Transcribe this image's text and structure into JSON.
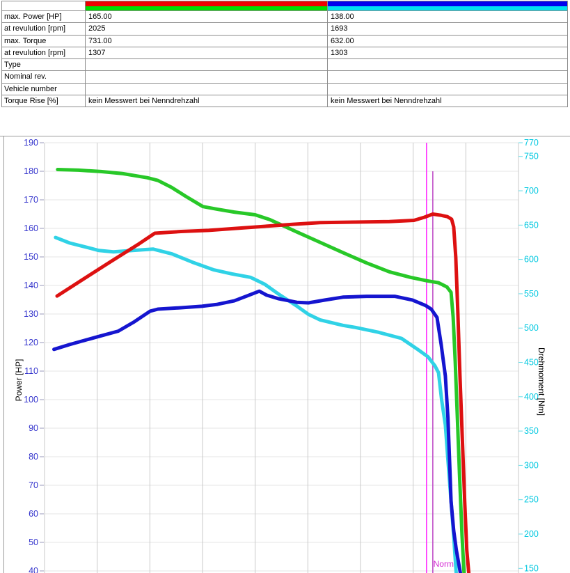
{
  "table": {
    "header_colors": {
      "run1_power": "#ee0000",
      "run1_torque": "#00dd00",
      "run2_power": "#0000ee",
      "run2_torque": "#00e0f0"
    },
    "rows": [
      {
        "label": "max. Power [HP]",
        "run1": "165.00",
        "run2": "138.00"
      },
      {
        "label": "at revulution [rpm]",
        "run1": "2025",
        "run2": "1693"
      },
      {
        "label": "max. Torque",
        "run1": "731.00",
        "run2": "632.00"
      },
      {
        "label": "at revulution [rpm]",
        "run1": "1307",
        "run2": "1303"
      },
      {
        "label": "Type",
        "run1": "",
        "run2": ""
      },
      {
        "label": "Nominal rev.",
        "run1": "",
        "run2": ""
      },
      {
        "label": "Vehicle number",
        "run1": "",
        "run2": ""
      },
      {
        "label": "Torque Rise [%]",
        "run1": "kein Messwert bei Nenndrehzahl",
        "run2": "kein Messwert bei Nenndrehzahl"
      }
    ]
  },
  "chart_data": {
    "type": "line",
    "title": "",
    "x_axis": {
      "unit": "rpm",
      "labels_visible": false,
      "visible_range_rpm": [
        1282,
        2189
      ]
    },
    "left_axis": {
      "label": "Power [HP]",
      "color": "#3333cc",
      "ticks": [
        190,
        180,
        170,
        160,
        150,
        140,
        130,
        120,
        110,
        100,
        90,
        80,
        70,
        60,
        50,
        40
      ],
      "range": [
        40,
        190
      ]
    },
    "right_axis": {
      "label": "Drehmoment [Nm]",
      "color": "#00c8e0",
      "ticks": [
        770,
        750,
        700,
        650,
        600,
        550,
        500,
        450,
        400,
        350,
        300,
        250,
        200,
        150
      ],
      "range": [
        150,
        770
      ]
    },
    "grid": {
      "vertical_lines": 10,
      "vertical_color": "#c9c9c9",
      "horizontal_color": "#e4e4e4"
    },
    "markers": {
      "lines": [
        {
          "rpm": 2013,
          "color": "#ff30ff",
          "from_hp": null
        },
        {
          "rpm": 2025,
          "color": "#c050c8",
          "from_hp": 180
        }
      ],
      "label": {
        "text": "Normin",
        "color": "#d428d4",
        "rpm": 2034,
        "hp": 41.5
      }
    },
    "series": [
      {
        "name": "torque-run-1",
        "axis": "nm",
        "color": "#28c828",
        "points": [
          [
            1307,
            731
          ],
          [
            1347,
            730
          ],
          [
            1390,
            728
          ],
          [
            1432,
            725
          ],
          [
            1479,
            719
          ],
          [
            1499,
            715
          ],
          [
            1525,
            705
          ],
          [
            1552,
            692
          ],
          [
            1585,
            677
          ],
          [
            1613,
            673
          ],
          [
            1645,
            669
          ],
          [
            1685,
            665
          ],
          [
            1713,
            658
          ],
          [
            1765,
            640
          ],
          [
            1809,
            625
          ],
          [
            1853,
            610
          ],
          [
            1898,
            595
          ],
          [
            1942,
            582
          ],
          [
            1982,
            574
          ],
          [
            2013,
            569
          ],
          [
            2036,
            566
          ],
          [
            2052,
            560
          ],
          [
            2060,
            552
          ],
          [
            2064,
            516
          ],
          [
            2068,
            451
          ],
          [
            2072,
            369
          ],
          [
            2076,
            288
          ],
          [
            2081,
            197
          ],
          [
            2085,
            140
          ]
        ]
      },
      {
        "name": "torque-run-2",
        "axis": "nm",
        "color": "#30d2e6",
        "points": [
          [
            1303,
            632
          ],
          [
            1330,
            624
          ],
          [
            1356,
            619
          ],
          [
            1386,
            613
          ],
          [
            1414,
            611
          ],
          [
            1450,
            613
          ],
          [
            1490,
            615
          ],
          [
            1526,
            608
          ],
          [
            1565,
            596
          ],
          [
            1605,
            585
          ],
          [
            1640,
            579
          ],
          [
            1676,
            574
          ],
          [
            1703,
            564
          ],
          [
            1729,
            550
          ],
          [
            1765,
            532
          ],
          [
            1787,
            520
          ],
          [
            1809,
            512
          ],
          [
            1853,
            504
          ],
          [
            1876,
            501
          ],
          [
            1920,
            494
          ],
          [
            1965,
            485
          ],
          [
            1996,
            469
          ],
          [
            2016,
            458
          ],
          [
            2029,
            445
          ],
          [
            2036,
            435
          ],
          [
            2042,
            395
          ],
          [
            2049,
            359
          ],
          [
            2054,
            308
          ],
          [
            2060,
            248
          ],
          [
            2065,
            197
          ],
          [
            2070,
            140
          ]
        ]
      },
      {
        "name": "power-run-1",
        "axis": "hp",
        "color": "#dd1111",
        "points": [
          [
            1306,
            136.3
          ],
          [
            1356,
            142.2
          ],
          [
            1410,
            148.5
          ],
          [
            1463,
            154.6
          ],
          [
            1493,
            158.3
          ],
          [
            1543,
            158.9
          ],
          [
            1596,
            159.3
          ],
          [
            1649,
            160.0
          ],
          [
            1703,
            160.7
          ],
          [
            1756,
            161.4
          ],
          [
            1809,
            162.0
          ],
          [
            1876,
            162.2
          ],
          [
            1942,
            162.4
          ],
          [
            1989,
            162.8
          ],
          [
            2009,
            163.9
          ],
          [
            2025,
            165.0
          ],
          [
            2040,
            164.6
          ],
          [
            2053,
            164.1
          ],
          [
            2061,
            163.2
          ],
          [
            2065,
            160.5
          ],
          [
            2069,
            149.8
          ],
          [
            2073,
            130.2
          ],
          [
            2077,
            108.3
          ],
          [
            2081,
            88.8
          ],
          [
            2086,
            64.4
          ],
          [
            2090,
            47.3
          ],
          [
            2094,
            39.0
          ]
        ]
      },
      {
        "name": "power-run-2",
        "axis": "hp",
        "color": "#1515cf",
        "points": [
          [
            1300,
            117.6
          ],
          [
            1330,
            119.3
          ],
          [
            1383,
            122.0
          ],
          [
            1423,
            124.0
          ],
          [
            1454,
            127.3
          ],
          [
            1484,
            131.0
          ],
          [
            1499,
            131.7
          ],
          [
            1543,
            132.2
          ],
          [
            1583,
            132.7
          ],
          [
            1613,
            133.4
          ],
          [
            1645,
            134.6
          ],
          [
            1669,
            136.3
          ],
          [
            1693,
            138.0
          ],
          [
            1707,
            136.6
          ],
          [
            1729,
            135.4
          ],
          [
            1765,
            134.1
          ],
          [
            1787,
            133.9
          ],
          [
            1819,
            134.9
          ],
          [
            1853,
            135.9
          ],
          [
            1898,
            136.2
          ],
          [
            1952,
            136.2
          ],
          [
            1986,
            134.9
          ],
          [
            2012,
            132.9
          ],
          [
            2022,
            131.7
          ],
          [
            2033,
            128.8
          ],
          [
            2041,
            119.3
          ],
          [
            2049,
            108.3
          ],
          [
            2054,
            93.7
          ],
          [
            2057,
            79.0
          ],
          [
            2060,
            64.4
          ],
          [
            2065,
            54.1
          ],
          [
            2070,
            47.3
          ],
          [
            2078,
            39.0
          ]
        ]
      }
    ]
  }
}
